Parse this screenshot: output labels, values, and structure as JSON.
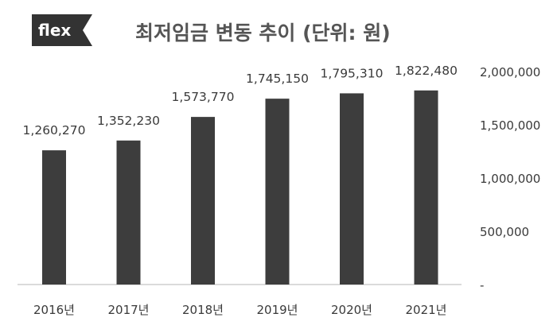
{
  "logo": {
    "text": "flex",
    "bg_color": "#333333",
    "text_color": "#ffffff"
  },
  "colors": {
    "bar": "#3d3d3d",
    "text": "#3a3a3a",
    "title": "#555555"
  },
  "chart_data": {
    "type": "bar",
    "title": "최저임금 변동 추이 (단위: 원)",
    "categories": [
      "2016년",
      "2017년",
      "2018년",
      "2019년",
      "2020년",
      "2021년"
    ],
    "values": [
      1260270,
      1352230,
      1573770,
      1745150,
      1795310,
      1822480
    ],
    "value_labels": [
      "1,260,270",
      "1,352,230",
      "1,573,770",
      "1,745,150",
      "1,795,310",
      "1,822,480"
    ],
    "ylim": [
      0,
      2000000
    ],
    "yticks": [
      0,
      500000,
      1000000,
      1500000,
      2000000
    ],
    "ytick_labels": [
      "-",
      "500,000",
      "1,000,000",
      "1,500,000",
      "2,000,000"
    ],
    "y_axis_side": "right",
    "grid": false,
    "xlabel": "",
    "ylabel": ""
  }
}
